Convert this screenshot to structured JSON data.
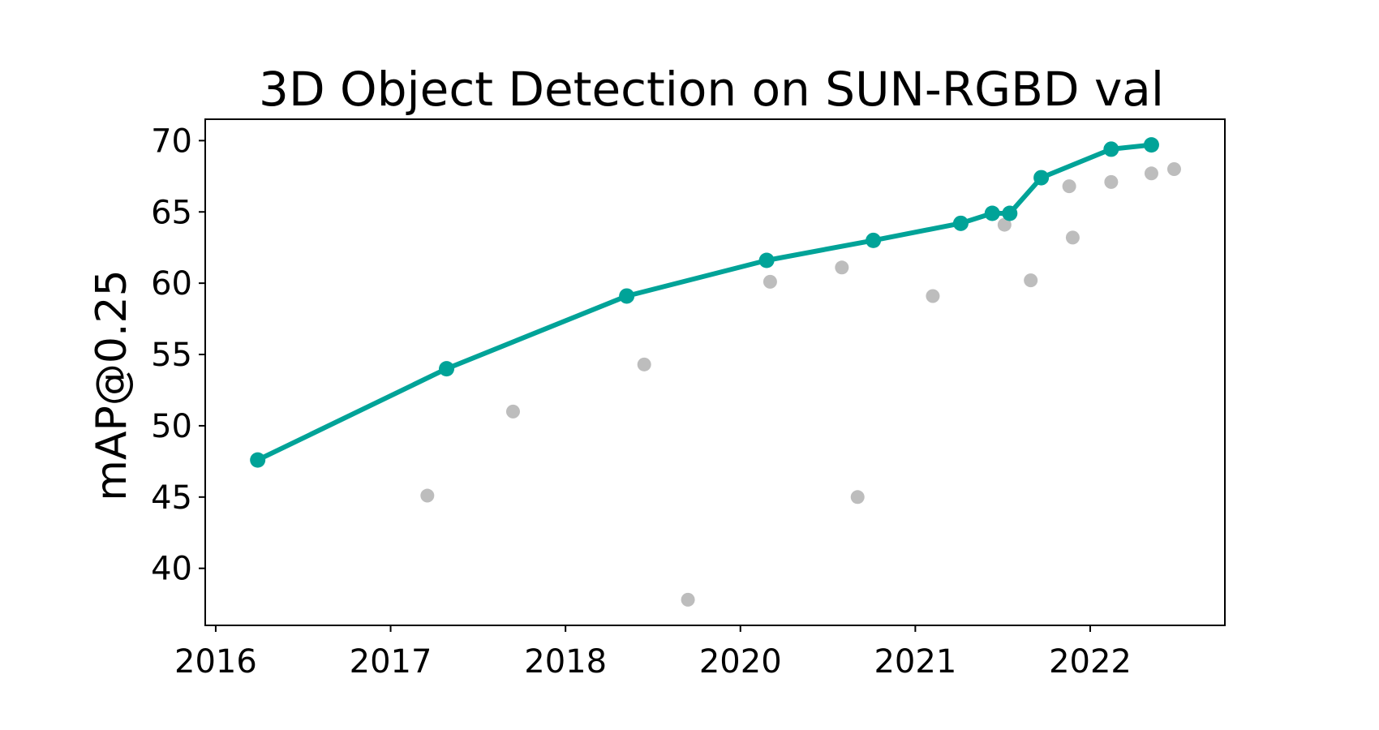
{
  "chart_data": {
    "type": "line",
    "title": "3D Object Detection on SUN-RGBD val",
    "xlabel": "",
    "ylabel": "mAP@0.25",
    "x_ticks": [
      "2016",
      "2017",
      "2018",
      "2020",
      "2021",
      "2022"
    ],
    "y_ticks": [
      40,
      45,
      50,
      55,
      60,
      65,
      70
    ],
    "ylim": [
      36,
      71.5
    ],
    "x_tick_positions": [
      0,
      1,
      2,
      3,
      4,
      5
    ],
    "xlim": [
      -0.06,
      5.77
    ],
    "grid": false,
    "legend": "none",
    "colors": {
      "sota": "#00a398",
      "other": "#bdbdbd",
      "axes": "#000000"
    },
    "series": [
      {
        "role": "state-of-the-art",
        "style": "line-with-markers",
        "points": [
          {
            "x": 0.24,
            "y": 47.6
          },
          {
            "x": 1.32,
            "y": 54.0
          },
          {
            "x": 2.35,
            "y": 59.1
          },
          {
            "x": 3.15,
            "y": 61.6
          },
          {
            "x": 3.76,
            "y": 63.0
          },
          {
            "x": 4.26,
            "y": 64.2
          },
          {
            "x": 4.44,
            "y": 64.9
          },
          {
            "x": 4.54,
            "y": 64.9
          },
          {
            "x": 4.72,
            "y": 67.4
          },
          {
            "x": 5.12,
            "y": 69.4
          },
          {
            "x": 5.35,
            "y": 69.7
          }
        ]
      },
      {
        "role": "other-methods",
        "style": "scatter",
        "points": [
          {
            "x": 1.21,
            "y": 45.1
          },
          {
            "x": 1.7,
            "y": 51.0
          },
          {
            "x": 2.45,
            "y": 54.3
          },
          {
            "x": 2.7,
            "y": 37.8
          },
          {
            "x": 3.17,
            "y": 60.1
          },
          {
            "x": 3.58,
            "y": 61.1
          },
          {
            "x": 3.67,
            "y": 45.0
          },
          {
            "x": 4.1,
            "y": 59.1
          },
          {
            "x": 4.51,
            "y": 64.1
          },
          {
            "x": 4.66,
            "y": 60.2
          },
          {
            "x": 4.88,
            "y": 66.8
          },
          {
            "x": 4.9,
            "y": 63.2
          },
          {
            "x": 5.12,
            "y": 67.1
          },
          {
            "x": 5.35,
            "y": 67.7
          },
          {
            "x": 5.48,
            "y": 68.0
          }
        ]
      }
    ]
  }
}
